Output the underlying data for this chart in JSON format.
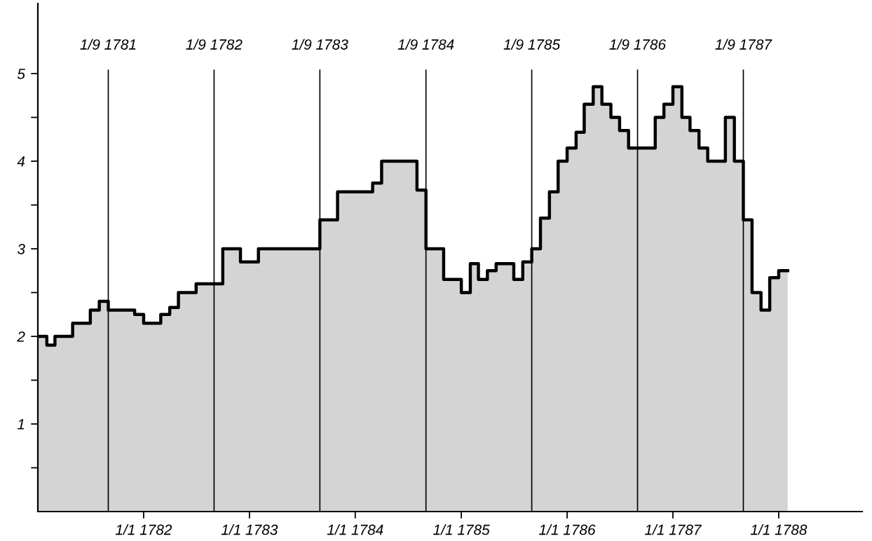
{
  "chart_data": {
    "type": "area",
    "x": [
      "1781-01",
      "1781-02",
      "1781-02",
      "1781-03",
      "1781-03",
      "1781-05",
      "1781-05",
      "1781-07",
      "1781-07",
      "1781-08",
      "1781-08",
      "1781-09",
      "1781-09",
      "1781-12",
      "1781-12",
      "1782-01",
      "1782-01",
      "1782-03",
      "1782-03",
      "1782-04",
      "1782-04",
      "1782-05",
      "1782-05",
      "1782-07",
      "1782-07",
      "1782-10",
      "1782-10",
      "1782-12",
      "1782-12",
      "1783-02",
      "1783-02",
      "1783-09",
      "1783-09",
      "1783-11",
      "1783-11",
      "1784-03",
      "1784-03",
      "1784-04",
      "1784-04",
      "1784-08",
      "1784-08",
      "1784-09",
      "1784-09",
      "1784-11",
      "1784-11",
      "1785-01",
      "1785-01",
      "1785-02",
      "1785-02",
      "1785-03",
      "1785-03",
      "1785-04",
      "1785-04",
      "1785-05",
      "1785-05",
      "1785-07",
      "1785-07",
      "1785-08",
      "1785-08",
      "1785-09",
      "1785-09",
      "1785-10",
      "1785-10",
      "1785-11",
      "1785-11",
      "1785-12",
      "1785-12",
      "1786-01",
      "1786-01",
      "1786-02",
      "1786-02",
      "1786-03",
      "1786-03",
      "1786-04",
      "1786-04",
      "1786-05",
      "1786-05",
      "1786-06",
      "1786-06",
      "1786-07",
      "1786-07",
      "1786-08",
      "1786-08",
      "1786-11",
      "1786-11",
      "1786-12",
      "1786-12",
      "1787-01",
      "1787-01",
      "1787-02",
      "1787-02",
      "1787-03",
      "1787-03",
      "1787-04",
      "1787-04",
      "1787-05",
      "1787-05",
      "1787-07",
      "1787-07",
      "1787-08",
      "1787-08",
      "1787-09",
      "1787-09",
      "1787-10",
      "1787-10",
      "1787-11",
      "1787-11",
      "1787-12",
      "1787-12",
      "1788-01",
      "1788-01",
      "1788-02"
    ],
    "series": [
      {
        "color": "#000000",
        "values": [
          2.0,
          2.0,
          1.9,
          1.9,
          2.0,
          2.0,
          2.15,
          2.15,
          2.3,
          2.3,
          2.4,
          2.4,
          2.3,
          2.3,
          2.25,
          2.25,
          2.15,
          2.15,
          2.25,
          2.25,
          2.33,
          2.33,
          2.5,
          2.5,
          2.6,
          2.6,
          3.0,
          3.0,
          2.85,
          2.85,
          3.0,
          3.0,
          3.33,
          3.33,
          3.65,
          3.65,
          3.75,
          3.75,
          4.0,
          4.0,
          3.67,
          3.67,
          3.0,
          3.0,
          2.65,
          2.65,
          2.5,
          2.5,
          2.83,
          2.83,
          2.65,
          2.65,
          2.75,
          2.75,
          2.83,
          2.83,
          2.65,
          2.65,
          2.85,
          2.85,
          3.0,
          3.0,
          3.35,
          3.35,
          3.65,
          3.65,
          4.0,
          4.0,
          4.15,
          4.15,
          4.33,
          4.33,
          4.65,
          4.65,
          4.85,
          4.85,
          4.65,
          4.65,
          4.5,
          4.5,
          4.35,
          4.35,
          4.15,
          4.15,
          4.5,
          4.5,
          4.65,
          4.65,
          4.85,
          4.85,
          4.5,
          4.5,
          4.35,
          4.35,
          4.15,
          4.15,
          4.0,
          4.0,
          4.5,
          4.5,
          4.0,
          4.0,
          3.33,
          3.33,
          2.5,
          2.5,
          2.3,
          2.3,
          2.67,
          2.67,
          2.75,
          2.75
        ]
      }
    ],
    "xlim": [
      "1781-01-01",
      "1788-10-15"
    ],
    "xticks": [
      {
        "value": "1782-01-01",
        "label": "1/1 1782"
      },
      {
        "value": "1783-01-01",
        "label": "1/1 1783"
      },
      {
        "value": "1784-01-01",
        "label": "1/1 1784"
      },
      {
        "value": "1785-01-01",
        "label": "1/1 1785"
      },
      {
        "value": "1786-01-01",
        "label": "1/1 1786"
      },
      {
        "value": "1787-01-01",
        "label": "1/1 1787"
      },
      {
        "value": "1788-01-01",
        "label": "1/1 1788"
      }
    ],
    "ylim": [
      0,
      5.8
    ],
    "yticks": [
      {
        "value": 0.5,
        "label": null
      },
      1,
      {
        "value": 1.5,
        "label": null
      },
      2,
      {
        "value": 2.5,
        "label": null
      },
      3,
      {
        "value": 3.5,
        "label": null
      },
      4,
      {
        "value": 4.5,
        "label": null
      },
      5
    ],
    "ref_lines": [
      {
        "axis": "x",
        "value": "1781-09-01",
        "label": "1/9 1781",
        "color": "#000000"
      },
      {
        "axis": "x",
        "value": "1782-09-01",
        "label": "1/9 1782",
        "color": "#000000"
      },
      {
        "axis": "x",
        "value": "1783-09-01",
        "label": "1/9 1783",
        "color": "#000000"
      },
      {
        "axis": "x",
        "value": "1784-09-01",
        "label": "1/9 1784",
        "color": "#000000"
      },
      {
        "axis": "x",
        "value": "1785-09-01",
        "label": "1/9 1785",
        "color": "#000000"
      },
      {
        "axis": "x",
        "value": "1786-09-01",
        "label": "1/9 1786",
        "color": "#000000"
      },
      {
        "axis": "x",
        "value": "1787-09-01",
        "label": "1/9 1787",
        "color": "#000000"
      }
    ]
  }
}
